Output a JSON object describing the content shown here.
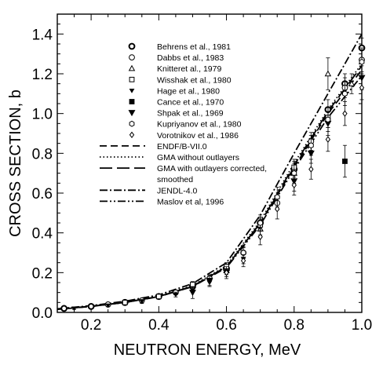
{
  "chart_data": {
    "type": "scatter",
    "xlabel": "NEUTRON ENERGY, MeV",
    "ylabel": "CROSS SECTION, b",
    "xlim": [
      0.1,
      1.0
    ],
    "ylim": [
      0.0,
      1.5
    ],
    "x_ticks": [
      "0.2",
      "0.4",
      "0.6",
      "0.8",
      "1.0"
    ],
    "y_ticks": [
      "0.0",
      "0.2",
      "0.4",
      "0.6",
      "0.8",
      "1.0",
      "1.2",
      "1.4"
    ],
    "x_tick_values": [
      0.2,
      0.4,
      0.6,
      0.8,
      1.0
    ],
    "y_tick_values": [
      0.0,
      0.2,
      0.4,
      0.6,
      0.8,
      1.0,
      1.2,
      1.4
    ],
    "legend_position": "upper-left",
    "series": [
      {
        "name": "Behrens et al., 1981",
        "marker": "circle-bold",
        "points": [
          [
            0.12,
            0.02,
            0.006
          ],
          [
            0.2,
            0.03,
            0.006
          ],
          [
            0.3,
            0.05,
            0.01
          ],
          [
            0.4,
            0.08,
            0.012
          ],
          [
            0.5,
            0.13,
            0.015
          ],
          [
            0.6,
            0.22,
            0.02
          ],
          [
            0.7,
            0.45,
            0.03
          ],
          [
            0.8,
            0.72,
            0.04
          ],
          [
            0.9,
            1.02,
            0.05
          ],
          [
            0.95,
            1.15,
            0.05
          ],
          [
            1.0,
            1.33,
            0.05
          ]
        ]
      },
      {
        "name": "Dabbs et al., 1983",
        "marker": "circle-open",
        "points": [
          [
            0.25,
            0.04,
            0.008
          ],
          [
            0.35,
            0.06,
            0.01
          ],
          [
            0.45,
            0.1,
            0.012
          ],
          [
            0.55,
            0.17,
            0.015
          ],
          [
            0.65,
            0.3,
            0.025
          ],
          [
            0.75,
            0.55,
            0.035
          ],
          [
            0.85,
            0.86,
            0.045
          ],
          [
            0.95,
            1.13,
            0.05
          ],
          [
            1.0,
            1.27,
            0.06
          ]
        ]
      },
      {
        "name": "Knitteret al., 1979",
        "marker": "triangle-open",
        "points": [
          [
            0.6,
            0.21,
            0.02
          ],
          [
            0.7,
            0.42,
            0.03
          ],
          [
            0.8,
            0.7,
            0.04
          ],
          [
            0.9,
            1.2,
            0.08
          ],
          [
            0.97,
            1.15,
            0.05
          ]
        ]
      },
      {
        "name": "Wisshak et al., 1980",
        "marker": "square-open",
        "points": [
          [
            0.3,
            0.05,
            0.01
          ],
          [
            0.4,
            0.08,
            0.012
          ],
          [
            0.5,
            0.14,
            0.015
          ],
          [
            0.6,
            0.23,
            0.02
          ],
          [
            0.7,
            0.44,
            0.03
          ],
          [
            0.8,
            0.73,
            0.04
          ],
          [
            0.9,
            0.98,
            0.05
          ]
        ]
      },
      {
        "name": "Hage et al., 1980",
        "marker": "triangle-down-filled",
        "points": [
          [
            0.15,
            0.02,
            0.005
          ],
          [
            0.25,
            0.035,
            0.007
          ],
          [
            0.35,
            0.055,
            0.01
          ],
          [
            0.45,
            0.09,
            0.012
          ],
          [
            0.55,
            0.15,
            0.015
          ],
          [
            0.65,
            0.27,
            0.025
          ]
        ]
      },
      {
        "name": "Cance et al., 1970",
        "marker": "square-filled",
        "points": [
          [
            0.95,
            0.76,
            0.08
          ]
        ]
      },
      {
        "name": "Shpak et al., 1969",
        "marker": "triangle-down-filled-large",
        "points": [
          [
            0.5,
            0.1,
            0.03
          ],
          [
            0.55,
            0.16,
            0.03
          ],
          [
            0.6,
            0.2,
            0.03
          ],
          [
            0.8,
            0.66,
            0.05
          ],
          [
            0.85,
            0.8,
            0.05
          ],
          [
            0.9,
            0.95,
            0.06
          ],
          [
            1.0,
            1.18,
            0.06
          ]
        ]
      },
      {
        "name": "Kupriyanov et al., 1980",
        "marker": "hexagon-open",
        "points": [
          [
            0.65,
            0.3,
            0.03
          ],
          [
            0.7,
            0.45,
            0.04
          ],
          [
            0.75,
            0.58,
            0.05
          ],
          [
            0.8,
            0.7,
            0.05
          ],
          [
            0.85,
            0.84,
            0.05
          ],
          [
            0.9,
            0.97,
            0.06
          ],
          [
            0.95,
            1.1,
            0.06
          ],
          [
            1.0,
            1.26,
            0.06
          ]
        ]
      },
      {
        "name": "Vorotnikov et al., 1986",
        "marker": "diamond-open",
        "points": [
          [
            0.6,
            0.2,
            0.02
          ],
          [
            0.65,
            0.26,
            0.03
          ],
          [
            0.7,
            0.38,
            0.04
          ],
          [
            0.75,
            0.52,
            0.05
          ],
          [
            0.8,
            0.64,
            0.05
          ],
          [
            0.85,
            0.72,
            0.05
          ],
          [
            0.9,
            0.87,
            0.06
          ],
          [
            0.95,
            1.0,
            0.06
          ],
          [
            1.0,
            1.13,
            0.06
          ]
        ]
      },
      {
        "name": "ENDF/B-VII.0",
        "style": "dashed",
        "x": [
          0.1,
          0.2,
          0.3,
          0.4,
          0.5,
          0.6,
          0.7,
          0.8,
          0.9,
          1.0
        ],
        "y": [
          0.015,
          0.03,
          0.05,
          0.08,
          0.13,
          0.23,
          0.45,
          0.73,
          1.0,
          1.22
        ]
      },
      {
        "name": "GMA without outlayers",
        "style": "dotted",
        "x": [
          0.1,
          0.2,
          0.3,
          0.4,
          0.5,
          0.6,
          0.7,
          0.8,
          0.9,
          1.0
        ],
        "y": [
          0.017,
          0.032,
          0.052,
          0.082,
          0.135,
          0.235,
          0.46,
          0.75,
          1.02,
          1.25
        ]
      },
      {
        "name": "GMA with outlayers corrected, smoothed",
        "style": "longdash",
        "x": [
          0.1,
          0.2,
          0.3,
          0.4,
          0.5,
          0.6,
          0.7,
          0.8,
          0.9,
          1.0
        ],
        "y": [
          0.016,
          0.031,
          0.05,
          0.08,
          0.132,
          0.23,
          0.45,
          0.74,
          1.01,
          1.24
        ]
      },
      {
        "name": "JENDL-4.0",
        "style": "dashdot",
        "x": [
          0.1,
          0.2,
          0.3,
          0.4,
          0.5,
          0.6,
          0.7,
          0.8,
          0.9,
          1.0
        ],
        "y": [
          0.018,
          0.034,
          0.056,
          0.088,
          0.145,
          0.25,
          0.49,
          0.8,
          1.1,
          1.4
        ]
      },
      {
        "name": "Maslov et al, 1996",
        "style": "dashdotdot",
        "x": [
          0.1,
          0.2,
          0.3,
          0.4,
          0.5,
          0.6,
          0.7,
          0.8,
          0.9,
          1.0
        ],
        "y": [
          0.016,
          0.03,
          0.05,
          0.079,
          0.13,
          0.225,
          0.44,
          0.72,
          0.98,
          1.19
        ]
      }
    ],
    "legend": [
      "Behrens et al., 1981",
      "Dabbs et al., 1983",
      "Knitteret al., 1979",
      "Wisshak et al., 1980",
      "Hage et al., 1980",
      "Cance et al., 1970",
      "Shpak et al., 1969",
      "Kupriyanov et al., 1980",
      "Vorotnikov et al., 1986",
      "ENDF/B-VII.0",
      "GMA without outlayers",
      "GMA with outlayers corrected,",
      "smoothed",
      "JENDL-4.0",
      "Maslov et al, 1996"
    ]
  }
}
